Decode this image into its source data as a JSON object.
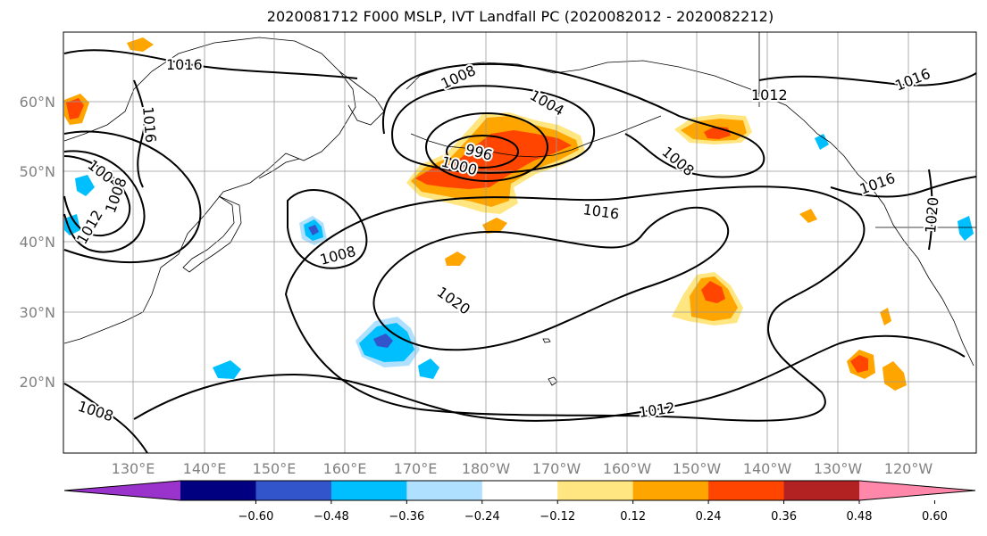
{
  "title": "2020081712 F000 MSLP, IVT Landfall PC (2020082012 - 2020082212)",
  "lat_labels": [
    "60°N",
    "50°N",
    "40°N",
    "30°N",
    "20°N"
  ],
  "lon_labels": [
    "130°E",
    "140°E",
    "150°E",
    "160°E",
    "170°E",
    "180°W",
    "170°W",
    "160°W",
    "150°W",
    "140°W",
    "130°W",
    "120°W"
  ],
  "isobar_labels": [
    {
      "id": "1016-nw",
      "text": "1016"
    },
    {
      "id": "1016-w",
      "text": "1016"
    },
    {
      "id": "1008-north",
      "text": "1008"
    },
    {
      "id": "1004-low",
      "text": "1004"
    },
    {
      "id": "996-low",
      "text": "996"
    },
    {
      "id": "1000-low",
      "text": "1000"
    },
    {
      "id": "1012-gulf",
      "text": "1012"
    },
    {
      "id": "1016-ne",
      "text": "1016"
    },
    {
      "id": "1008-ne",
      "text": "1008"
    },
    {
      "id": "1004-asia",
      "text": "1004"
    },
    {
      "id": "1008-asia",
      "text": "1008"
    },
    {
      "id": "1012-asia",
      "text": "1012"
    },
    {
      "id": "1008-mid",
      "text": "1008"
    },
    {
      "id": "1016-mid",
      "text": "1016"
    },
    {
      "id": "1020-mid",
      "text": "1020"
    },
    {
      "id": "1016-coast",
      "text": "1016"
    },
    {
      "id": "1020-coast",
      "text": "1020"
    },
    {
      "id": "1008-sw",
      "text": "1008"
    },
    {
      "id": "1012-south",
      "text": "1012"
    }
  ],
  "colorbar": {
    "colors": [
      "#9933cc",
      "#000080",
      "#3355cc",
      "#00bfff",
      "#b0e0ff",
      "#ffffff",
      "#ffe680",
      "#ffa500",
      "#ff4500",
      "#b22222",
      "#ff88aa"
    ],
    "ticks": [
      "−0.60",
      "−0.48",
      "−0.36",
      "−0.24",
      "−0.12",
      "0.12",
      "0.24",
      "0.36",
      "0.48",
      "0.60"
    ]
  },
  "colors": {
    "land_outline": "#000000",
    "grid": "#999999",
    "axis_label": "#808080"
  }
}
